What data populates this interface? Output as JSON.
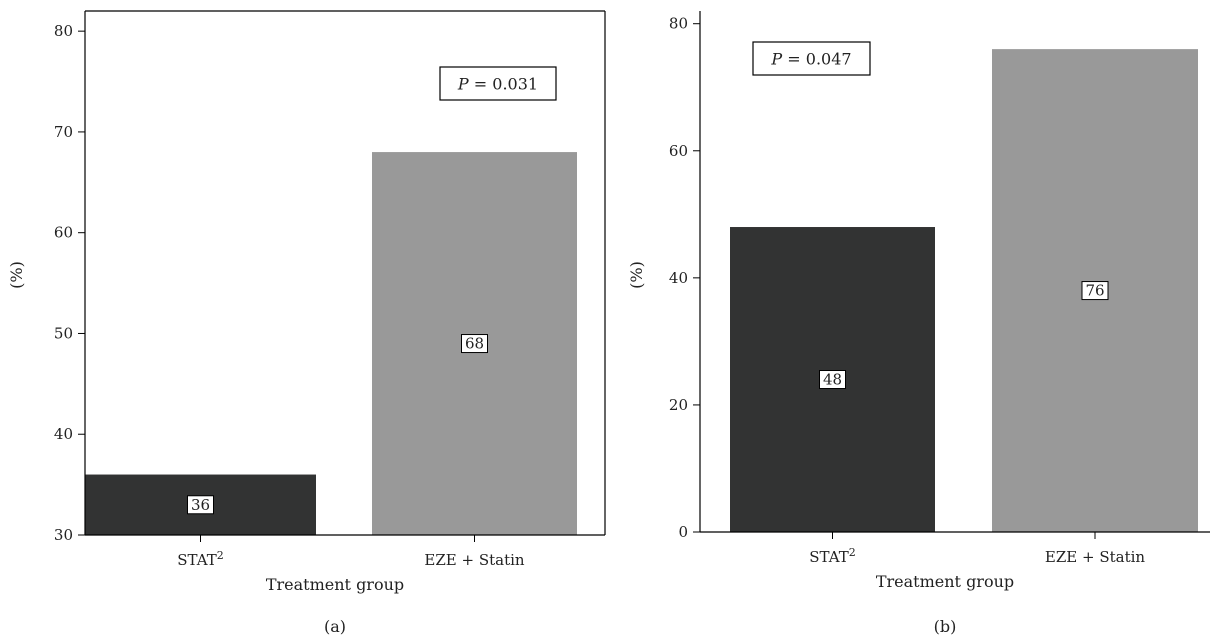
{
  "colors": {
    "stat2": "#323333",
    "eze_statin": "#999999",
    "axis": "#000000",
    "text": "#222222"
  },
  "chart_data": [
    {
      "type": "bar",
      "panel_label": "(a)",
      "categories": [
        {
          "base": "STAT",
          "sup": "2"
        },
        {
          "base": "EZE + Statin",
          "sup": ""
        }
      ],
      "values": [
        36,
        68
      ],
      "data_labels": [
        "36",
        "68"
      ],
      "xlabel": "Treatment group",
      "ylabel": "(%)",
      "ylim": [
        30,
        82
      ],
      "yticks": [
        30,
        40,
        50,
        60,
        70,
        80
      ],
      "annotation": {
        "p": "P",
        "rest": " = 0.031"
      },
      "annotation_position": "top-right",
      "grid": false
    },
    {
      "type": "bar",
      "panel_label": "(b)",
      "categories": [
        {
          "base": "STAT",
          "sup": "2"
        },
        {
          "base": "EZE + Statin",
          "sup": ""
        }
      ],
      "values": [
        48,
        76
      ],
      "data_labels": [
        "48",
        "76"
      ],
      "xlabel": "Treatment group",
      "ylabel": "(%)",
      "ylim": [
        0,
        82
      ],
      "yticks": [
        0,
        20,
        40,
        60,
        80
      ],
      "annotation": {
        "p": "P",
        "rest": " = 0.047"
      },
      "annotation_position": "top-left",
      "grid": false
    }
  ]
}
